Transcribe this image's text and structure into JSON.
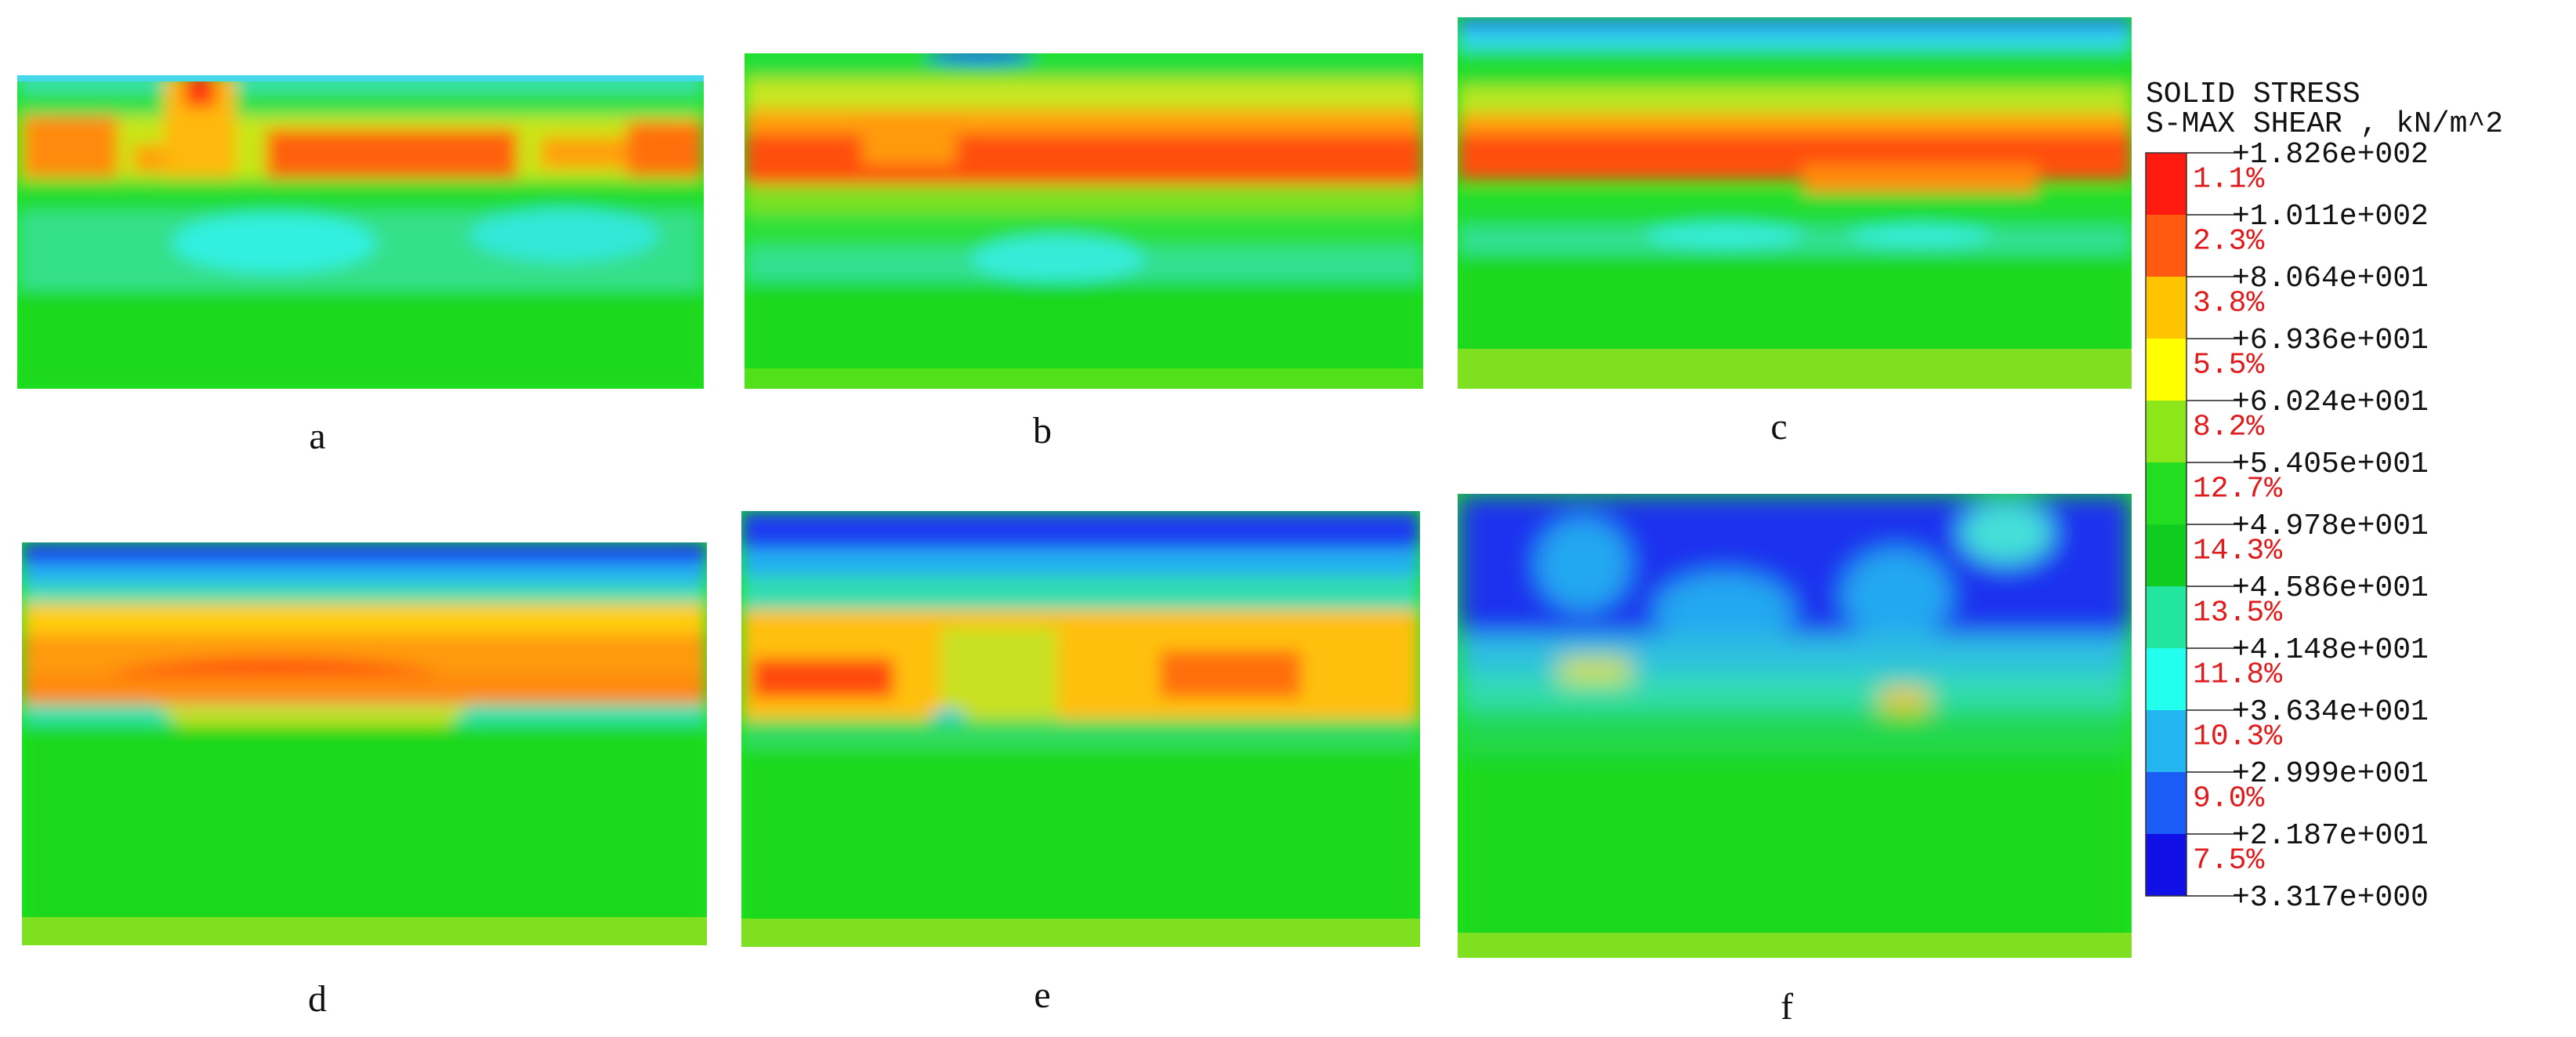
{
  "figure": {
    "panels": [
      {
        "label": "a"
      },
      {
        "label": "b"
      },
      {
        "label": "c"
      },
      {
        "label": "d"
      },
      {
        "label": "e"
      },
      {
        "label": "f"
      }
    ]
  },
  "chart_data": {
    "type": "heatmap",
    "legend": {
      "title_line1": "SOLID STRESS",
      "title_line2": "S-MAX SHEAR , kN/m^2",
      "placement": "right",
      "boundaries": [
        "+1.826e+002",
        "+1.011e+002",
        "+8.064e+001",
        "+6.936e+001",
        "+6.024e+001",
        "+5.405e+001",
        "+4.978e+001",
        "+4.586e+001",
        "+4.148e+001",
        "+3.634e+001",
        "+2.999e+001",
        "+2.187e+001",
        "+3.317e+000"
      ],
      "bands": [
        {
          "percent": "1.1%",
          "color": "#ff1a10"
        },
        {
          "percent": "2.3%",
          "color": "#ff5a10"
        },
        {
          "percent": "3.8%",
          "color": "#ffc400"
        },
        {
          "percent": "5.5%",
          "color": "#ffff00"
        },
        {
          "percent": "8.2%",
          "color": "#8ce61a"
        },
        {
          "percent": "12.7%",
          "color": "#22dd22"
        },
        {
          "percent": "14.3%",
          "color": "#10cc20"
        },
        {
          "percent": "13.5%",
          "color": "#22e6a0"
        },
        {
          "percent": "11.8%",
          "color": "#22ffee"
        },
        {
          "percent": "10.3%",
          "color": "#22b5f0"
        },
        {
          "percent": "9.0%",
          "color": "#1a5cf5"
        },
        {
          "percent": "7.5%",
          "color": "#1010e6"
        }
      ]
    }
  }
}
